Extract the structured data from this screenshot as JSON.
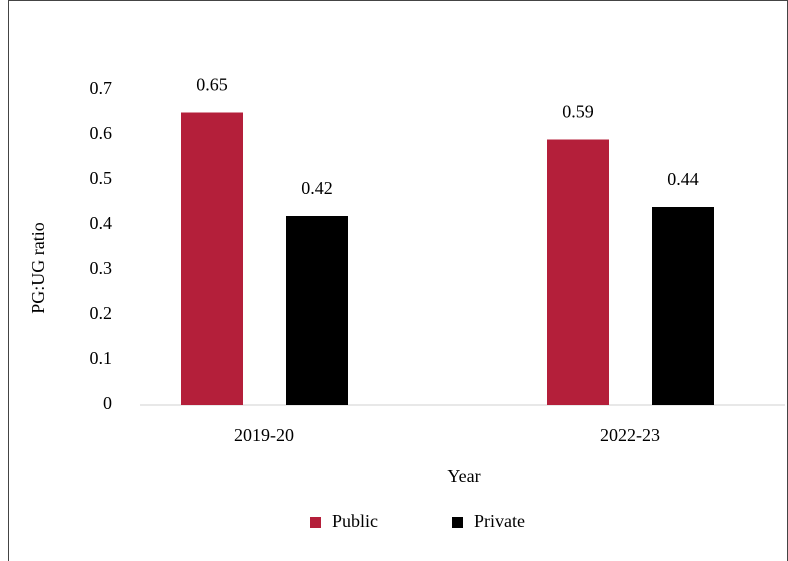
{
  "chart_data": {
    "type": "bar",
    "categories": [
      "2019-20",
      "2022-23"
    ],
    "series": [
      {
        "name": "Public",
        "color": "#b41f3a",
        "values": [
          0.65,
          0.59
        ]
      },
      {
        "name": "Private",
        "color": "#000000",
        "values": [
          0.42,
          0.44
        ]
      }
    ],
    "ylim": [
      0,
      0.7
    ],
    "yticks": [
      0,
      0.1,
      0.2,
      0.3,
      0.4,
      0.5,
      0.6,
      0.7
    ],
    "ylabel": "PG:UG ratio",
    "xlabel": "Year",
    "grid": false,
    "legend": "bottom"
  }
}
